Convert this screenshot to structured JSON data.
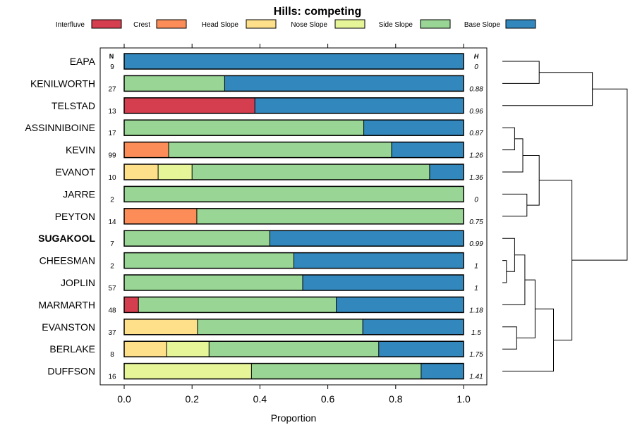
{
  "chart_data": {
    "type": "bar",
    "stacked": true,
    "orientation": "horizontal",
    "title": "Hills: competing",
    "xlabel": "Proportion",
    "xlim": [
      0,
      1
    ],
    "xticks": [
      "0.0",
      "0.2",
      "0.4",
      "0.6",
      "0.8",
      "1.0"
    ],
    "n_header": "N",
    "h_header": "H",
    "legend": [
      {
        "name": "Interfluve",
        "color": "#D53E4F"
      },
      {
        "name": "Crest",
        "color": "#FC8D59"
      },
      {
        "name": "Head Slope",
        "color": "#FEE08B"
      },
      {
        "name": "Nose Slope",
        "color": "#E6F598"
      },
      {
        "name": "Side Slope",
        "color": "#99D594"
      },
      {
        "name": "Base Slope",
        "color": "#3288BD"
      }
    ],
    "rows": [
      {
        "name": "EAPA",
        "bold": false,
        "n": "9",
        "h": "0",
        "values": [
          0,
          0,
          0,
          0,
          0,
          1.0
        ]
      },
      {
        "name": "KENILWORTH",
        "bold": false,
        "n": "27",
        "h": "0.88",
        "values": [
          0,
          0,
          0,
          0,
          0.296,
          0.704
        ]
      },
      {
        "name": "TELSTAD",
        "bold": false,
        "n": "13",
        "h": "0.96",
        "values": [
          0.385,
          0,
          0,
          0,
          0,
          0.615
        ]
      },
      {
        "name": "ASSINNIBOINE",
        "bold": false,
        "n": "17",
        "h": "0.87",
        "values": [
          0,
          0,
          0,
          0,
          0.706,
          0.294
        ]
      },
      {
        "name": "KEVIN",
        "bold": false,
        "n": "99",
        "h": "1.26",
        "values": [
          0,
          0.131,
          0,
          0,
          0.657,
          0.212
        ]
      },
      {
        "name": "EVANOT",
        "bold": false,
        "n": "10",
        "h": "1.36",
        "values": [
          0,
          0,
          0.1,
          0.1,
          0.7,
          0.1
        ]
      },
      {
        "name": "JARRE",
        "bold": false,
        "n": "2",
        "h": "0",
        "values": [
          0,
          0,
          0,
          0,
          1.0,
          0
        ]
      },
      {
        "name": "PEYTON",
        "bold": false,
        "n": "14",
        "h": "0.75",
        "values": [
          0,
          0.214,
          0,
          0,
          0.786,
          0
        ]
      },
      {
        "name": "SUGAKOOL",
        "bold": true,
        "n": "7",
        "h": "0.99",
        "values": [
          0,
          0,
          0,
          0,
          0.429,
          0.571
        ]
      },
      {
        "name": "CHEESMAN",
        "bold": false,
        "n": "2",
        "h": "1",
        "values": [
          0,
          0,
          0,
          0,
          0.5,
          0.5
        ]
      },
      {
        "name": "JOPLIN",
        "bold": false,
        "n": "57",
        "h": "1",
        "values": [
          0,
          0,
          0,
          0,
          0.526,
          0.474
        ]
      },
      {
        "name": "MARMARTH",
        "bold": false,
        "n": "48",
        "h": "1.18",
        "values": [
          0.042,
          0,
          0,
          0,
          0.583,
          0.375
        ]
      },
      {
        "name": "EVANSTON",
        "bold": false,
        "n": "37",
        "h": "1.5",
        "values": [
          0,
          0,
          0.216,
          0,
          0.487,
          0.297
        ]
      },
      {
        "name": "BERLAKE",
        "bold": false,
        "n": "8",
        "h": "1.75",
        "values": [
          0,
          0,
          0.125,
          0.125,
          0.5,
          0.25
        ]
      },
      {
        "name": "DUFFSON",
        "bold": false,
        "n": "16",
        "h": "1.41",
        "values": [
          0,
          0,
          0,
          0.375,
          0.5,
          0.125
        ]
      }
    ],
    "dendrogram": {
      "description": "hierarchical clustering tree of rows (row indices, top to bottom)",
      "nodes": [
        {
          "children": [
            "r0",
            "r1"
          ],
          "height": 0.18
        },
        {
          "children": [
            "n0",
            "r2"
          ],
          "height": 0.44
        },
        {
          "children": [
            "r3",
            "r4"
          ],
          "height": 0.06
        },
        {
          "children": [
            "n2",
            "r5"
          ],
          "height": 0.1
        },
        {
          "children": [
            "r6",
            "r7"
          ],
          "height": 0.12
        },
        {
          "children": [
            "n3",
            "n4"
          ],
          "height": 0.18
        },
        {
          "children": [
            "r9",
            "r10"
          ],
          "height": 0.02
        },
        {
          "children": [
            "r8",
            "n6"
          ],
          "height": 0.06
        },
        {
          "children": [
            "n7",
            "r11"
          ],
          "height": 0.11
        },
        {
          "children": [
            "r12",
            "r13"
          ],
          "height": 0.07
        },
        {
          "children": [
            "n8",
            "n9"
          ],
          "height": 0.16
        },
        {
          "children": [
            "n10",
            "r14"
          ],
          "height": 0.25
        },
        {
          "children": [
            "n5",
            "n11"
          ],
          "height": 0.34
        },
        {
          "children": [
            "n1",
            "n12"
          ],
          "height": 0.61
        }
      ]
    }
  }
}
